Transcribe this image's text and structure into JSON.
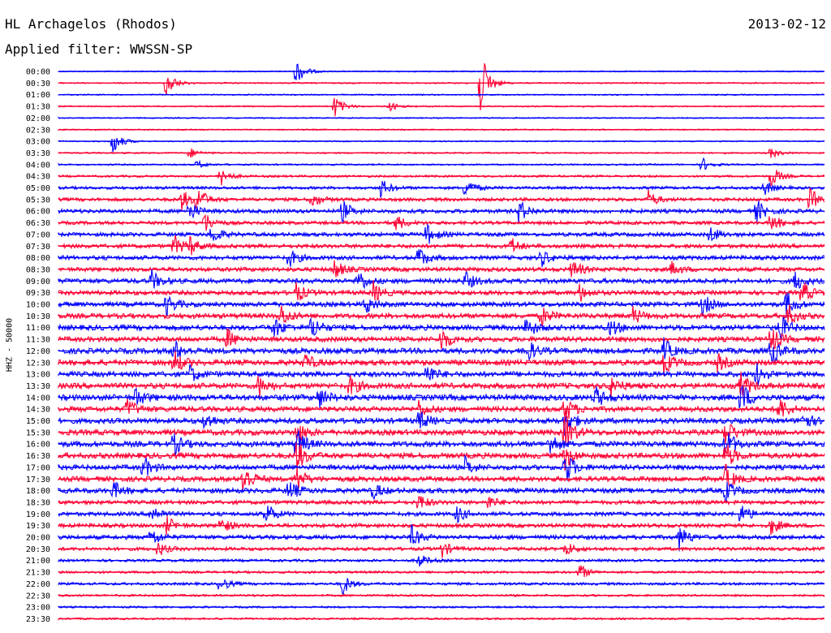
{
  "header": {
    "station": "HL Archagelos (Rhodos)",
    "date": "2013-02-12",
    "filter": "Applied filter: WWSSN-SP"
  },
  "chart_data": {
    "type": "line",
    "ylabel": "HHZ - 50000",
    "colors": {
      "even_rows": "#0000ff",
      "odd_rows": "#ff0033"
    },
    "rows": [
      {
        "time": "00:00",
        "activity": 0.15,
        "events": [
          [
            31,
            2.0
          ]
        ]
      },
      {
        "time": "00:30",
        "activity": 0.2,
        "events": [
          [
            14,
            2.2
          ],
          [
            55,
            5.0
          ]
        ]
      },
      {
        "time": "01:00",
        "activity": 0.15,
        "events": []
      },
      {
        "time": "01:30",
        "activity": 0.2,
        "events": [
          [
            36,
            1.6
          ],
          [
            43,
            0.8
          ]
        ]
      },
      {
        "time": "02:00",
        "activity": 0.15,
        "events": []
      },
      {
        "time": "02:30",
        "activity": 0.15,
        "events": []
      },
      {
        "time": "03:00",
        "activity": 0.15,
        "events": [
          [
            7,
            2.0
          ]
        ]
      },
      {
        "time": "03:30",
        "activity": 0.25,
        "events": [
          [
            17,
            0.8
          ],
          [
            93,
            0.8
          ]
        ]
      },
      {
        "time": "04:00",
        "activity": 0.3,
        "events": [
          [
            18,
            0.6
          ],
          [
            84,
            1.0
          ]
        ]
      },
      {
        "time": "04:30",
        "activity": 0.5,
        "events": [
          [
            21,
            1.6
          ],
          [
            93,
            1.6
          ]
        ]
      },
      {
        "time": "05:00",
        "activity": 0.8,
        "events": [
          [
            42,
            1.4
          ],
          [
            53,
            1.6
          ],
          [
            92,
            1.2
          ]
        ]
      },
      {
        "time": "05:30",
        "activity": 1.0,
        "events": [
          [
            16,
            1.6
          ],
          [
            18,
            2.0
          ],
          [
            33,
            1.2
          ],
          [
            77,
            1.2
          ],
          [
            98,
            1.8
          ]
        ]
      },
      {
        "time": "06:00",
        "activity": 1.2,
        "events": [
          [
            17,
            1.4
          ],
          [
            37,
            1.6
          ],
          [
            60,
            1.8
          ],
          [
            91,
            1.8
          ]
        ]
      },
      {
        "time": "06:30",
        "activity": 1.0,
        "events": [
          [
            19,
            1.6
          ],
          [
            44,
            1.2
          ],
          [
            93,
            1.4
          ]
        ]
      },
      {
        "time": "07:00",
        "activity": 1.2,
        "events": [
          [
            20,
            1.4
          ],
          [
            48,
            1.6
          ],
          [
            85,
            1.2
          ]
        ]
      },
      {
        "time": "07:30",
        "activity": 1.2,
        "events": [
          [
            15,
            1.6
          ],
          [
            17,
            1.4
          ],
          [
            59,
            1.2
          ]
        ]
      },
      {
        "time": "08:00",
        "activity": 1.3,
        "events": [
          [
            30,
            1.4
          ],
          [
            47,
            1.6
          ],
          [
            63,
            1.2
          ]
        ]
      },
      {
        "time": "08:30",
        "activity": 1.3,
        "events": [
          [
            36,
            1.4
          ],
          [
            67,
            1.6
          ],
          [
            80,
            1.0
          ]
        ]
      },
      {
        "time": "09:00",
        "activity": 1.5,
        "events": [
          [
            12,
            1.6
          ],
          [
            39,
            1.8
          ],
          [
            53,
            1.4
          ],
          [
            96,
            1.6
          ]
        ]
      },
      {
        "time": "09:30",
        "activity": 1.4,
        "events": [
          [
            31,
            1.4
          ],
          [
            41,
            1.6
          ],
          [
            68,
            1.2
          ],
          [
            97,
            1.8
          ]
        ]
      },
      {
        "time": "10:00",
        "activity": 1.5,
        "events": [
          [
            14,
            1.6
          ],
          [
            40,
            1.4
          ],
          [
            84,
            1.6
          ],
          [
            95,
            2.0
          ]
        ]
      },
      {
        "time": "10:30",
        "activity": 1.6,
        "events": [
          [
            29,
            1.6
          ],
          [
            63,
            1.4
          ],
          [
            75,
            1.2
          ],
          [
            95,
            2.0
          ]
        ]
      },
      {
        "time": "11:00",
        "activity": 1.7,
        "events": [
          [
            28,
            1.6
          ],
          [
            33,
            1.8
          ],
          [
            61,
            1.6
          ],
          [
            72,
            1.2
          ],
          [
            94,
            2.2
          ]
        ]
      },
      {
        "time": "11:30",
        "activity": 1.6,
        "events": [
          [
            22,
            1.4
          ],
          [
            50,
            1.6
          ],
          [
            93,
            2.0
          ]
        ]
      },
      {
        "time": "12:00",
        "activity": 1.8,
        "events": [
          [
            15,
            1.6
          ],
          [
            61,
            1.8
          ],
          [
            79,
            1.6
          ],
          [
            93,
            2.2
          ]
        ]
      },
      {
        "time": "12:30",
        "activity": 1.8,
        "events": [
          [
            15,
            1.8
          ],
          [
            32,
            1.4
          ],
          [
            79,
            1.6
          ],
          [
            86,
            1.2
          ]
        ]
      },
      {
        "time": "13:00",
        "activity": 1.7,
        "events": [
          [
            17,
            1.4
          ],
          [
            48,
            1.6
          ],
          [
            91,
            1.8
          ]
        ]
      },
      {
        "time": "13:30",
        "activity": 1.8,
        "events": [
          [
            26,
            1.6
          ],
          [
            38,
            1.4
          ],
          [
            72,
            1.6
          ],
          [
            89,
            2.0
          ]
        ]
      },
      {
        "time": "14:00",
        "activity": 1.9,
        "events": [
          [
            10,
            1.4
          ],
          [
            34,
            1.4
          ],
          [
            70,
            1.6
          ],
          [
            89,
            2.4
          ]
        ]
      },
      {
        "time": "14:30",
        "activity": 1.7,
        "events": [
          [
            9,
            1.4
          ],
          [
            47,
            1.4
          ],
          [
            66,
            2.0
          ],
          [
            94,
            1.8
          ]
        ]
      },
      {
        "time": "15:00",
        "activity": 1.7,
        "events": [
          [
            19,
            1.4
          ],
          [
            47,
            1.6
          ],
          [
            66,
            2.4
          ],
          [
            97,
            1.6
          ]
        ]
      },
      {
        "time": "15:30",
        "activity": 1.8,
        "events": [
          [
            31,
            1.8
          ],
          [
            66,
            3.0
          ],
          [
            87,
            2.0
          ]
        ]
      },
      {
        "time": "16:00",
        "activity": 1.8,
        "events": [
          [
            15,
            1.6
          ],
          [
            31,
            2.4
          ],
          [
            64,
            1.8
          ],
          [
            87,
            2.4
          ]
        ]
      },
      {
        "time": "16:30",
        "activity": 1.8,
        "events": [
          [
            31,
            2.6
          ],
          [
            66,
            2.0
          ],
          [
            87,
            2.0
          ]
        ]
      },
      {
        "time": "17:00",
        "activity": 1.6,
        "events": [
          [
            11,
            1.6
          ],
          [
            53,
            1.4
          ],
          [
            66,
            2.8
          ]
        ]
      },
      {
        "time": "17:30",
        "activity": 1.6,
        "events": [
          [
            24,
            2.6
          ],
          [
            31,
            1.8
          ],
          [
            87,
            2.0
          ]
        ]
      },
      {
        "time": "18:00",
        "activity": 1.6,
        "events": [
          [
            7,
            1.4
          ],
          [
            30,
            1.6
          ],
          [
            41,
            1.2
          ],
          [
            87,
            1.6
          ]
        ]
      },
      {
        "time": "18:30",
        "activity": 1.2,
        "events": [
          [
            47,
            1.2
          ],
          [
            56,
            1.0
          ]
        ]
      },
      {
        "time": "19:00",
        "activity": 1.2,
        "events": [
          [
            12,
            1.6
          ],
          [
            27,
            1.8
          ],
          [
            52,
            1.2
          ],
          [
            89,
            1.6
          ]
        ]
      },
      {
        "time": "19:30",
        "activity": 1.2,
        "events": [
          [
            14,
            1.4
          ],
          [
            21,
            1.4
          ],
          [
            93,
            1.2
          ]
        ]
      },
      {
        "time": "20:00",
        "activity": 1.3,
        "events": [
          [
            12,
            1.4
          ],
          [
            46,
            1.6
          ],
          [
            81,
            1.8
          ]
        ]
      },
      {
        "time": "20:30",
        "activity": 1.0,
        "events": [
          [
            13,
            1.0
          ],
          [
            50,
            1.2
          ],
          [
            66,
            1.2
          ]
        ]
      },
      {
        "time": "21:00",
        "activity": 0.7,
        "events": [
          [
            47,
            1.0
          ]
        ]
      },
      {
        "time": "21:30",
        "activity": 0.6,
        "events": [
          [
            68,
            1.2
          ]
        ]
      },
      {
        "time": "22:00",
        "activity": 0.7,
        "events": [
          [
            21,
            1.2
          ],
          [
            37,
            1.6
          ]
        ]
      },
      {
        "time": "22:30",
        "activity": 0.5,
        "events": []
      },
      {
        "time": "23:00",
        "activity": 0.4,
        "events": []
      },
      {
        "time": "23:30",
        "activity": 0.4,
        "events": []
      }
    ]
  }
}
